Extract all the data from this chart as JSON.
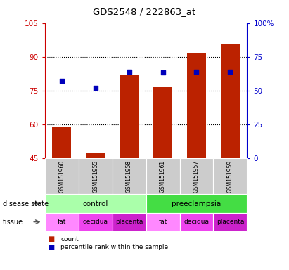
{
  "title": "GDS2548 / 222863_at",
  "samples": [
    "GSM151960",
    "GSM151955",
    "GSM151958",
    "GSM151961",
    "GSM151957",
    "GSM151959"
  ],
  "count_values": [
    58.5,
    47.0,
    82.0,
    76.5,
    91.5,
    95.5
  ],
  "percentile_values": [
    57.0,
    52.0,
    64.0,
    63.5,
    64.0,
    64.0
  ],
  "ylim_left": [
    45,
    105
  ],
  "ylim_right": [
    0,
    100
  ],
  "yticks_left": [
    45,
    60,
    75,
    90,
    105
  ],
  "yticks_right": [
    0,
    25,
    50,
    75,
    100
  ],
  "ytick_labels_left": [
    "45",
    "60",
    "75",
    "90",
    "105"
  ],
  "ytick_labels_right": [
    "0",
    "25",
    "50",
    "75",
    "100%"
  ],
  "bar_bottom": 45,
  "bar_color": "#bb2200",
  "dot_color": "#0000bb",
  "disease_states": [
    {
      "label": "control",
      "span": [
        0,
        3
      ],
      "color": "#aaffaa"
    },
    {
      "label": "preeclampsia",
      "span": [
        3,
        6
      ],
      "color": "#44dd44"
    }
  ],
  "tissues": [
    {
      "label": "fat",
      "span": [
        0,
        1
      ],
      "color": "#ff88ff"
    },
    {
      "label": "decidua",
      "span": [
        1,
        2
      ],
      "color": "#ee44ee"
    },
    {
      "label": "placenta",
      "span": [
        2,
        3
      ],
      "color": "#cc22cc"
    },
    {
      "label": "fat",
      "span": [
        3,
        4
      ],
      "color": "#ff88ff"
    },
    {
      "label": "decidua",
      "span": [
        4,
        5
      ],
      "color": "#ee44ee"
    },
    {
      "label": "placenta",
      "span": [
        5,
        6
      ],
      "color": "#cc22cc"
    }
  ],
  "sample_box_color": "#cccccc",
  "left_axis_color": "#cc0000",
  "right_axis_color": "#0000cc",
  "bar_width": 0.55
}
